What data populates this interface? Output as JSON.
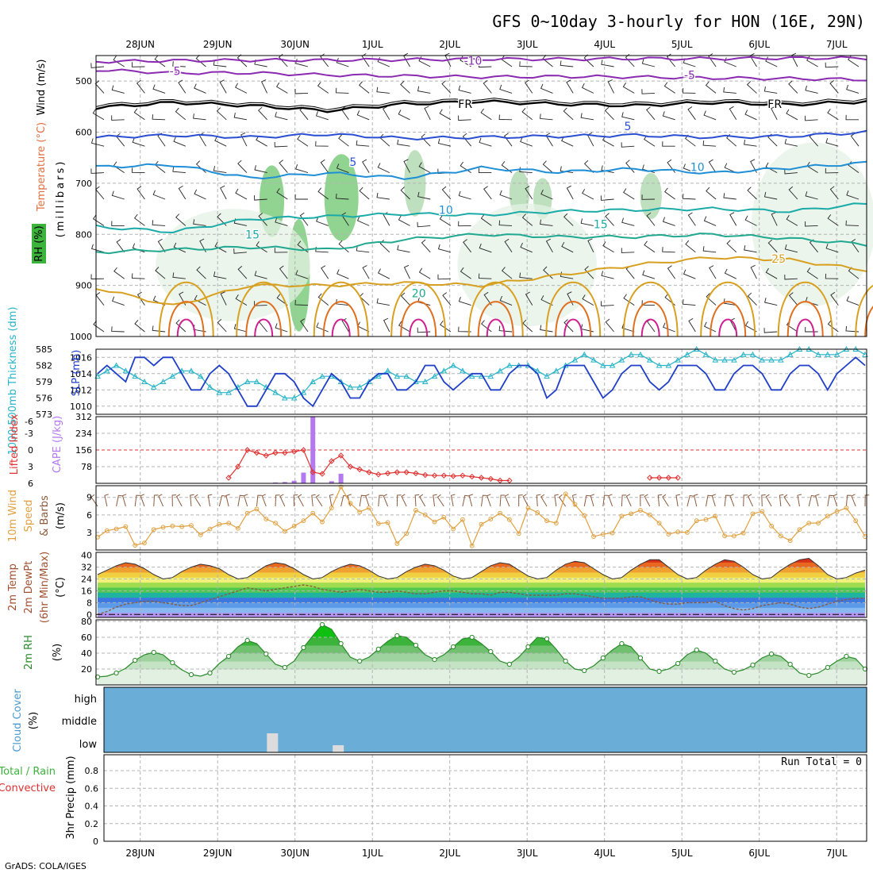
{
  "title": "GFS 0~10day 3-hourly for HON (16E, 29N)",
  "footer": "GrADS: COLA/IGES",
  "dates": [
    "28JUN",
    "29JUN",
    "30JUN",
    "1JUL",
    "2JUL",
    "3JUL",
    "4JUL",
    "5JUL",
    "6JUL",
    "7JUL"
  ],
  "colors": {
    "grid": "#b4b4b4",
    "slp": "#1f3fc8",
    "thickness": "#28b4c8",
    "lifted": "#e03030",
    "cape": "#b478f0",
    "wind10": "#e0a040",
    "barb": "#8b5a3c",
    "rh2m": "#2a8a2a",
    "cloud": "#6aaed8",
    "cloud_low": "#dcdcdc"
  },
  "chart_data": [
    {
      "id": "upper",
      "type": "contour",
      "ylabel_wind": "Wind (m/s)",
      "ylabel_temp": "Temperature (°C)",
      "ylabel_rh": "RH (%)",
      "ylabel_units": "(millibars)",
      "y_ticks": [
        500,
        600,
        700,
        800,
        900,
        1000
      ],
      "ylim": [
        450,
        1000
      ],
      "temperature_contours": [
        {
          "value": "-10",
          "color": "#8a2ab0",
          "levels": [
            462,
            460,
            459,
            459,
            458,
            457,
            457,
            456,
            456,
            455,
            455
          ]
        },
        {
          "value": "-5",
          "color": "#8a2ab0",
          "levels": [
            478,
            484,
            484,
            488,
            490,
            492,
            491,
            492,
            494,
            495,
            497
          ]
        },
        {
          "value": "FR",
          "color": "#000000",
          "levels": [
            552,
            542,
            548,
            558,
            545,
            540,
            545,
            548,
            542,
            546,
            540
          ]
        },
        {
          "value": "5",
          "color": "#2a4ed0",
          "levels": [
            610,
            606,
            610,
            604,
            612,
            610,
            608,
            606,
            610,
            608,
            600
          ]
        },
        {
          "value": "10",
          "color": "#1e8ed6",
          "levels": [
            668,
            664,
            690,
            680,
            690,
            670,
            678,
            672,
            680,
            670,
            660
          ]
        },
        {
          "value": "15",
          "color": "#1aaaa8",
          "levels": [
            785,
            795,
            770,
            765,
            760,
            762,
            755,
            752,
            750,
            755,
            740
          ]
        },
        {
          "value": "20",
          "color": "#20a890",
          "levels": [
            835,
            830,
            825,
            830,
            810,
            800,
            805,
            805,
            800,
            808,
            820
          ]
        },
        {
          "value": "25",
          "color": "#d8a020",
          "levels": [
            905,
            940,
            900,
            900,
            895,
            900,
            880,
            860,
            845,
            850,
            870
          ]
        }
      ],
      "contour_labels": [
        {
          "text": "-5",
          "day": 0.45,
          "p": 480,
          "color": "#8a2ab0"
        },
        {
          "text": "-10",
          "day": 4.3,
          "p": 460,
          "color": "#8a2ab0"
        },
        {
          "text": "-5",
          "day": 7.1,
          "p": 488,
          "color": "#8a2ab0"
        },
        {
          "text": "FR",
          "day": 4.2,
          "p": 545,
          "color": "#000000"
        },
        {
          "text": "FR",
          "day": 8.2,
          "p": 545,
          "color": "#000000"
        },
        {
          "text": "5",
          "day": 2.75,
          "p": 658,
          "color": "#2a4ed0"
        },
        {
          "text": "5",
          "day": 6.3,
          "p": 588,
          "color": "#2a4ed0"
        },
        {
          "text": "10",
          "day": 3.95,
          "p": 752,
          "color": "#1e8ed6"
        },
        {
          "text": "10",
          "day": 7.2,
          "p": 668,
          "color": "#1e8ed6"
        },
        {
          "text": "15",
          "day": 1.45,
          "p": 800,
          "color": "#1aaaa8"
        },
        {
          "text": "15",
          "day": 5.95,
          "p": 780,
          "color": "#1aaaa8"
        },
        {
          "text": "20",
          "day": 3.6,
          "p": 915,
          "color": "#20a890"
        },
        {
          "text": "25",
          "day": 8.25,
          "p": 848,
          "color": "#d8a020"
        }
      ],
      "rh_patches": [
        {
          "day": 1.7,
          "p": 735,
          "rx": 0.16,
          "rp": 70,
          "shade": "#6cc56c"
        },
        {
          "day": 2.6,
          "p": 728,
          "rx": 0.22,
          "rp": 85,
          "shade": "#6cc56c"
        },
        {
          "day": 2.05,
          "p": 880,
          "rx": 0.14,
          "rp": 110,
          "shade": "#6cc56c"
        },
        {
          "day": 3.55,
          "p": 700,
          "rx": 0.14,
          "rp": 65,
          "shade": "#a8d6a8"
        },
        {
          "day": 4.9,
          "p": 720,
          "rx": 0.13,
          "rp": 45,
          "shade": "#a8d6a8"
        },
        {
          "day": 5.2,
          "p": 730,
          "rx": 0.12,
          "rp": 40,
          "shade": "#a8d6a8"
        },
        {
          "day": 6.6,
          "p": 725,
          "rx": 0.14,
          "rp": 45,
          "shade": "#a8d6a8"
        },
        {
          "day": 1.2,
          "p": 860,
          "rx": 1.0,
          "rp": 110,
          "shade": "#e4f2e4"
        },
        {
          "day": 5.0,
          "p": 860,
          "rx": 0.9,
          "rp": 120,
          "shade": "#e4f2e4"
        },
        {
          "day": 8.7,
          "p": 780,
          "rx": 0.8,
          "rp": 160,
          "shade": "#e4f2e4"
        }
      ]
    },
    {
      "id": "slp",
      "type": "line",
      "ylabel_left": "1000-500mb Thickness (dm)",
      "ylabel_right": "SLP (mb)",
      "thickness_ticks": [
        573,
        576,
        579,
        582,
        585
      ],
      "slp_ticks": [
        1010,
        1012,
        1014,
        1016
      ],
      "slp_range": [
        1009,
        1017
      ],
      "thickness_range": [
        573,
        585
      ],
      "slp": [
        1014,
        1015,
        1014,
        1013,
        1016,
        1016,
        1015,
        1016,
        1016,
        1014,
        1012,
        1012,
        1014,
        1015,
        1014,
        1012,
        1010,
        1010,
        1012,
        1014,
        1014,
        1013,
        1011,
        1010,
        1012,
        1014,
        1013,
        1011,
        1011,
        1013,
        1014,
        1014,
        1012,
        1012,
        1013,
        1015,
        1015,
        1013,
        1012,
        1013,
        1014,
        1014,
        1012,
        1012,
        1014,
        1015,
        1015,
        1014,
        1011,
        1012,
        1015,
        1015,
        1015,
        1013,
        1011,
        1012,
        1014,
        1015,
        1015,
        1013,
        1012,
        1013,
        1015,
        1015,
        1015,
        1014,
        1012,
        1012,
        1014,
        1015,
        1015,
        1014,
        1012,
        1012,
        1014,
        1015,
        1015,
        1014,
        1012,
        1014,
        1015,
        1016,
        1015
      ],
      "thickness": [
        580,
        581,
        582,
        581,
        580,
        579,
        578,
        579,
        580,
        581,
        581,
        580,
        578,
        577,
        577,
        578,
        579,
        579,
        578,
        577,
        576,
        576,
        577,
        579,
        580,
        580,
        579,
        578,
        578,
        579,
        580,
        581,
        580,
        580,
        579,
        579,
        580,
        581,
        582,
        581,
        580,
        580,
        580,
        581,
        582,
        582,
        582,
        581,
        580,
        581,
        582,
        583,
        584,
        583,
        582,
        582,
        583,
        584,
        584,
        583,
        582,
        582,
        583,
        584,
        585,
        584,
        583,
        583,
        583,
        584,
        584,
        583,
        583,
        583,
        584,
        585,
        585,
        584,
        584,
        584,
        585,
        585,
        584
      ]
    },
    {
      "id": "instability",
      "type": "bar+line",
      "ylabel_left": "Lifted Index",
      "ylabel_right": "CAPE (J/kg)",
      "li_ticks": [
        -6,
        -3,
        0,
        3,
        6
      ],
      "cape_ticks": [
        78,
        156,
        234,
        312
      ],
      "cape_range": [
        0,
        312
      ],
      "li_range": [
        -6,
        6
      ],
      "cape": [
        0,
        0,
        0,
        0,
        0,
        0,
        0,
        0,
        0,
        0,
        0,
        0,
        0,
        0,
        0,
        0,
        0,
        0,
        0,
        4,
        6,
        12,
        50,
        312,
        0,
        10,
        45,
        0,
        0,
        0,
        0,
        0,
        0,
        0,
        0,
        0,
        0,
        0,
        0,
        0,
        0,
        0,
        0,
        0,
        0,
        0,
        0,
        0,
        0,
        0,
        0,
        0,
        0,
        0,
        0,
        0,
        0,
        0,
        0,
        0,
        0,
        0,
        0,
        0,
        0,
        0,
        0,
        0,
        0,
        0,
        0,
        0,
        0,
        0,
        0,
        0,
        0,
        0,
        0,
        0,
        0,
        0,
        0
      ],
      "lifted_index": [
        null,
        null,
        null,
        null,
        null,
        null,
        null,
        null,
        null,
        null,
        null,
        null,
        null,
        null,
        5,
        3,
        0,
        0.5,
        1,
        0.5,
        0.5,
        0.3,
        0,
        4,
        4.3,
        2,
        1,
        3,
        3.5,
        4,
        4.4,
        4.2,
        4,
        4,
        4.2,
        4.5,
        4.6,
        4.6,
        4.7,
        4.6,
        4.8,
        5,
        5.2,
        5.5,
        5.5,
        null,
        null,
        null,
        null,
        null,
        null,
        null,
        null,
        null,
        null,
        null,
        null,
        null,
        null,
        5,
        5,
        5,
        5,
        null,
        null,
        null,
        null,
        null,
        null,
        null,
        null,
        null,
        null,
        null,
        null,
        null,
        null,
        null,
        null,
        null,
        null,
        null,
        null
      ]
    },
    {
      "id": "wind10",
      "type": "line",
      "ylabel_left": "10m Wind",
      "ylabel_mid": "Speed",
      "ylabel_right": "& Barbs",
      "ylabel_units": "(m/s)",
      "y_ticks": [
        3,
        6,
        9
      ],
      "ylim": [
        0,
        11
      ],
      "values": [
        2.2,
        3.3,
        3.6,
        4.0,
        0.8,
        1.2,
        3.5,
        3.9,
        4.1,
        4.0,
        4.2,
        2.6,
        3.6,
        4.4,
        4.6,
        3.7,
        6.3,
        7.0,
        5.3,
        4.6,
        3.2,
        4.1,
        5.0,
        6.3,
        4.8,
        7.2,
        10.8,
        8.0,
        6.5,
        7.2,
        4.5,
        4.7,
        1.1,
        2.8,
        6.8,
        6.0,
        4.8,
        5.6,
        3.6,
        5.2,
        0.7,
        4.4,
        5.3,
        6.3,
        5.2,
        2.8,
        7.2,
        6.4,
        5.0,
        4.6,
        9.6,
        7.8,
        5.9,
        2.3,
        2.7,
        2.9,
        5.8,
        6.2,
        6.8,
        6.0,
        4.6,
        2.7,
        3.1,
        3.0,
        5.0,
        5.2,
        5.8,
        2.4,
        2.4,
        2.9,
        6.2,
        6.6,
        4.1,
        2.4,
        1.6,
        3.5,
        4.6,
        4.6,
        5.8,
        6.6,
        7.2,
        5.0,
        2.3
      ]
    },
    {
      "id": "temp2m",
      "type": "area",
      "ylabel_left": "2m Temp",
      "ylabel_mid": "2m DewPt",
      "ylabel_right": "(6hr Min/Max)",
      "ylabel_units": "(°C)",
      "y_ticks": [
        0,
        8,
        16,
        24,
        32,
        40
      ],
      "ylim": [
        -2,
        42
      ],
      "temperature": [
        27,
        30,
        33,
        35,
        34,
        31,
        27,
        24,
        25,
        29,
        32,
        34,
        33,
        31,
        27,
        24,
        25,
        29,
        33,
        35,
        34,
        31,
        27,
        24,
        25,
        29,
        32,
        34,
        33,
        30,
        26,
        24,
        25,
        29,
        32,
        34,
        33,
        30,
        26,
        24,
        25,
        29,
        33,
        35,
        34,
        30,
        26,
        24,
        25,
        30,
        34,
        36,
        35,
        31,
        27,
        24,
        25,
        30,
        34,
        37,
        37,
        32,
        27,
        24,
        25,
        30,
        34,
        37,
        36,
        32,
        27,
        24,
        25,
        30,
        34,
        37,
        38,
        33,
        27,
        24,
        25,
        28,
        30
      ],
      "dewpoint": [
        0,
        2,
        5,
        7,
        8,
        9,
        9,
        8,
        7,
        6,
        6,
        8,
        10,
        12,
        14,
        16,
        18,
        17,
        16,
        17,
        18,
        19,
        20,
        19,
        17,
        16,
        15,
        16,
        17,
        16,
        15,
        15,
        16,
        15,
        14,
        14,
        15,
        16,
        16,
        15,
        14,
        14,
        13,
        15,
        15,
        14,
        13,
        13,
        13,
        13,
        14,
        14,
        13,
        12,
        11,
        11,
        11,
        12,
        12,
        10,
        8,
        7,
        7,
        8,
        8,
        8,
        9,
        6,
        4,
        3,
        4,
        6,
        7,
        8,
        7,
        5,
        4,
        5,
        7,
        9,
        10,
        11,
        11
      ],
      "color_bands": [
        "#b494f0",
        "#8ab8f0",
        "#5a9ae8",
        "#3c78e0",
        "#20b4a0",
        "#50c850",
        "#a0dc50",
        "#f0f07a",
        "#f0d040",
        "#f0a030",
        "#e86820",
        "#d83018",
        "#a01810"
      ]
    },
    {
      "id": "rh2m",
      "type": "area",
      "ylabel_left": "2m RH",
      "ylabel_units": "(%)",
      "y_ticks": [
        20,
        40,
        60,
        80
      ],
      "ylim": [
        0,
        82
      ],
      "values": [
        10,
        11,
        15,
        21,
        31,
        38,
        41,
        38,
        28,
        19,
        13,
        11,
        15,
        27,
        36,
        48,
        56,
        52,
        39,
        26,
        22,
        30,
        47,
        62,
        76,
        70,
        52,
        35,
        30,
        35,
        45,
        55,
        62,
        60,
        50,
        38,
        32,
        38,
        48,
        58,
        60,
        52,
        42,
        30,
        26,
        35,
        48,
        60,
        58,
        45,
        30,
        20,
        18,
        24,
        34,
        44,
        52,
        48,
        34,
        20,
        17,
        20,
        27,
        38,
        44,
        40,
        30,
        20,
        16,
        19,
        25,
        34,
        39,
        36,
        26,
        15,
        12,
        15,
        22,
        30,
        36,
        33,
        20
      ]
    },
    {
      "id": "cloud",
      "type": "bar",
      "ylabel_left": "Cloud Cover",
      "ylabel_units": "(%)",
      "levels": [
        "high",
        "middle",
        "low"
      ],
      "low_cloud_days": [
        1.75,
        2.6
      ]
    },
    {
      "id": "precip",
      "type": "bar",
      "ylabel_left": "Total / Rain",
      "ylabel_mid": "Convective",
      "ylabel_right": "3hr Precip (mm)",
      "run_total_label": "Run Total = 0",
      "y_ticks": [
        0,
        0.2,
        0.4,
        0.6,
        0.8
      ],
      "ylim": [
        0,
        0.98
      ],
      "values": []
    }
  ]
}
